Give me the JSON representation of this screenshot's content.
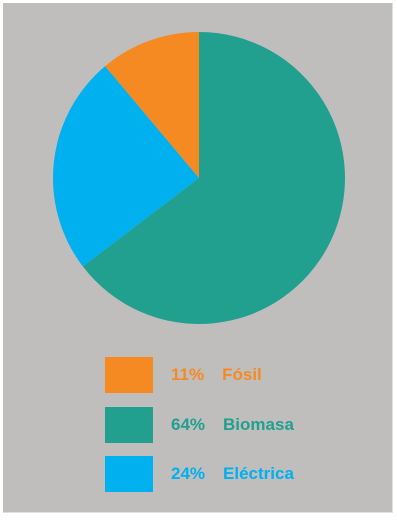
{
  "chart_data": {
    "type": "pie",
    "title": "",
    "slices": [
      {
        "label": "Fósil",
        "value": 11,
        "value_label": "11%",
        "color": "#f58a22"
      },
      {
        "label": "Biomasa",
        "value": 64,
        "value_label": "64%",
        "color": "#22a08f"
      },
      {
        "label": "Eléctrica",
        "value": 24,
        "value_label": "24%",
        "color": "#00b0ef"
      }
    ],
    "slice_order": "clockwise-from-top: Biomasa, Eléctrica, Fósil",
    "legend_placement": "bottom"
  },
  "colors": {
    "background": "#c0bdbd"
  }
}
